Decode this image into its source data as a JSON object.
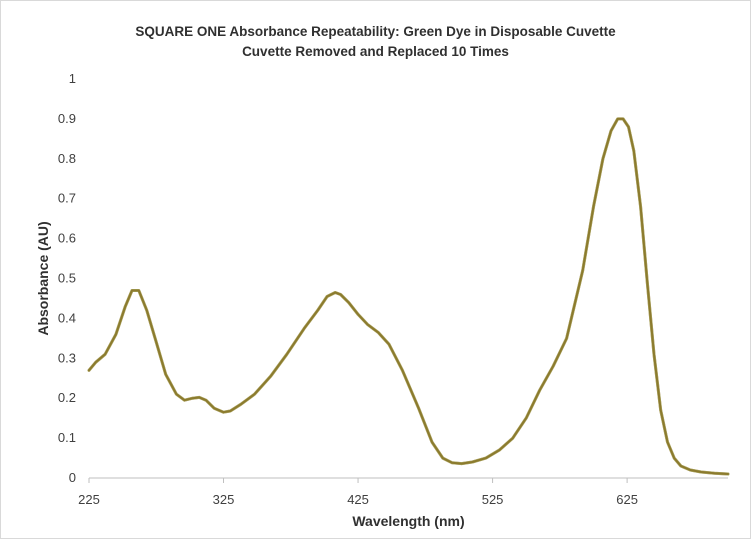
{
  "chart_data": {
    "type": "line",
    "title": "SQUARE ONE Absorbance Repeatability: Green Dye in Disposable Cuvette",
    "subtitle": "Cuvette Removed and Replaced 10 Times",
    "xlabel": "Wavelength (nm)",
    "ylabel": "Absorbance (AU)",
    "xlim": [
      225,
      700
    ],
    "ylim": [
      0,
      1
    ],
    "x_ticks": [
      225,
      325,
      425,
      525,
      625
    ],
    "x_tick_labels": [
      "225",
      "325",
      "425",
      "525",
      "625"
    ],
    "y_ticks": [
      0,
      0.1,
      0.2,
      0.3,
      0.4,
      0.5,
      0.6,
      0.7,
      0.8,
      0.9,
      1
    ],
    "y_tick_labels": [
      "0",
      "0.1",
      "0.2",
      "0.3",
      "0.4",
      "0.5",
      "0.6",
      "0.7",
      "0.8",
      "0.9",
      "1"
    ],
    "grid": false,
    "legend": "none",
    "colors": [
      "#c0504d",
      "#9bbb59",
      "#8c7a2e"
    ],
    "series": [
      {
        "x": [
          225,
          230,
          237,
          245,
          252,
          257,
          262,
          268,
          275,
          282,
          290,
          296,
          302,
          307,
          312,
          318,
          325,
          330,
          338,
          348,
          360,
          372,
          385,
          395,
          402,
          408,
          412,
          418,
          425,
          432,
          440,
          448,
          458,
          470,
          480,
          488,
          495,
          502,
          510,
          520,
          530,
          540,
          550,
          560,
          570,
          580,
          592,
          600,
          607,
          613,
          618,
          622,
          626,
          630,
          635,
          640,
          645,
          650,
          655,
          660,
          665,
          672,
          680,
          690,
          700
        ],
        "y": [
          0.27,
          0.29,
          0.31,
          0.36,
          0.43,
          0.47,
          0.47,
          0.42,
          0.34,
          0.26,
          0.21,
          0.195,
          0.2,
          0.202,
          0.195,
          0.175,
          0.165,
          0.168,
          0.185,
          0.21,
          0.255,
          0.31,
          0.375,
          0.42,
          0.455,
          0.465,
          0.46,
          0.44,
          0.41,
          0.385,
          0.365,
          0.335,
          0.27,
          0.175,
          0.09,
          0.05,
          0.038,
          0.036,
          0.04,
          0.05,
          0.07,
          0.1,
          0.15,
          0.22,
          0.28,
          0.35,
          0.52,
          0.68,
          0.8,
          0.87,
          0.9,
          0.9,
          0.88,
          0.82,
          0.68,
          0.49,
          0.31,
          0.17,
          0.09,
          0.05,
          0.03,
          0.02,
          0.015,
          0.012,
          0.01
        ]
      }
    ]
  }
}
